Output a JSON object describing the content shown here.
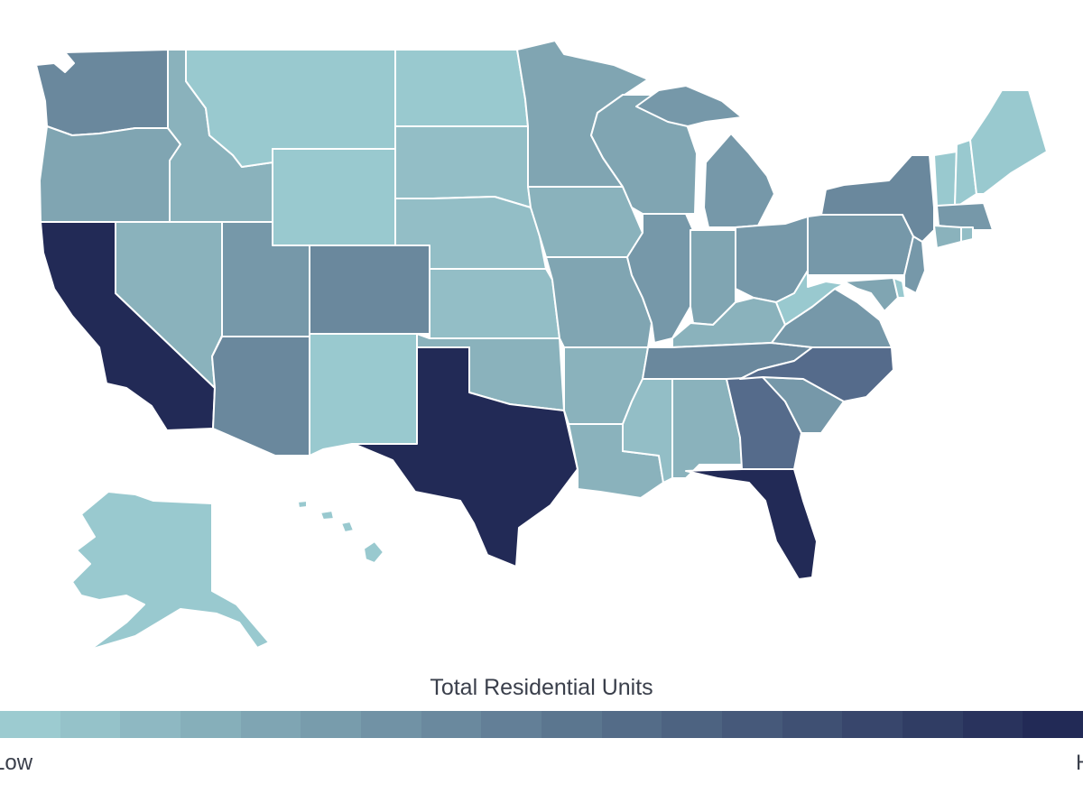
{
  "legend": {
    "title": "Total Residential Units",
    "low_label": "Low",
    "high_label": "High",
    "color_low": "#9ccbd0",
    "color_high": "#222a56",
    "steps": 18
  },
  "palette": {
    "l1": "#99c9cf",
    "l2": "#93bec6",
    "l3": "#8ab2bc",
    "l4": "#80a5b2",
    "l5": "#7698a9",
    "l6": "#6a889d",
    "l7": "#5e7893",
    "l8": "#556b8b",
    "top": "#222a56"
  },
  "states": [
    {
      "name": "Washington",
      "level": "l6"
    },
    {
      "name": "Oregon",
      "level": "l4"
    },
    {
      "name": "California",
      "level": "top"
    },
    {
      "name": "Idaho",
      "level": "l3"
    },
    {
      "name": "Nevada",
      "level": "l3"
    },
    {
      "name": "Montana",
      "level": "l1"
    },
    {
      "name": "Wyoming",
      "level": "l1"
    },
    {
      "name": "Utah",
      "level": "l5"
    },
    {
      "name": "Arizona",
      "level": "l6"
    },
    {
      "name": "Colorado",
      "level": "l6"
    },
    {
      "name": "New Mexico",
      "level": "l1"
    },
    {
      "name": "North Dakota",
      "level": "l1"
    },
    {
      "name": "South Dakota",
      "level": "l2"
    },
    {
      "name": "Nebraska",
      "level": "l2"
    },
    {
      "name": "Kansas",
      "level": "l2"
    },
    {
      "name": "Oklahoma",
      "level": "l3"
    },
    {
      "name": "Texas",
      "level": "top"
    },
    {
      "name": "Minnesota",
      "level": "l4"
    },
    {
      "name": "Iowa",
      "level": "l3"
    },
    {
      "name": "Missouri",
      "level": "l4"
    },
    {
      "name": "Arkansas",
      "level": "l3"
    },
    {
      "name": "Louisiana",
      "level": "l3"
    },
    {
      "name": "Wisconsin",
      "level": "l4"
    },
    {
      "name": "Illinois",
      "level": "l5"
    },
    {
      "name": "Michigan",
      "level": "l5"
    },
    {
      "name": "Indiana",
      "level": "l4"
    },
    {
      "name": "Ohio",
      "level": "l5"
    },
    {
      "name": "Kentucky",
      "level": "l3"
    },
    {
      "name": "Tennessee",
      "level": "l6"
    },
    {
      "name": "Mississippi",
      "level": "l2"
    },
    {
      "name": "Alabama",
      "level": "l3"
    },
    {
      "name": "Georgia",
      "level": "l8"
    },
    {
      "name": "Florida",
      "level": "top"
    },
    {
      "name": "South Carolina",
      "level": "l5"
    },
    {
      "name": "North Carolina",
      "level": "l8"
    },
    {
      "name": "Virginia",
      "level": "l5"
    },
    {
      "name": "West Virginia",
      "level": "l1"
    },
    {
      "name": "Pennsylvania",
      "level": "l5"
    },
    {
      "name": "New York",
      "level": "l6"
    },
    {
      "name": "New Jersey",
      "level": "l5"
    },
    {
      "name": "Delaware",
      "level": "l1"
    },
    {
      "name": "Maryland",
      "level": "l4"
    },
    {
      "name": "Vermont",
      "level": "l1"
    },
    {
      "name": "New Hampshire",
      "level": "l1"
    },
    {
      "name": "Maine",
      "level": "l1"
    },
    {
      "name": "Massachusetts",
      "level": "l5"
    },
    {
      "name": "Connecticut",
      "level": "l3"
    },
    {
      "name": "Rhode Island",
      "level": "l2"
    },
    {
      "name": "Alaska",
      "level": "l1"
    },
    {
      "name": "Hawaii",
      "level": "l1"
    }
  ]
}
